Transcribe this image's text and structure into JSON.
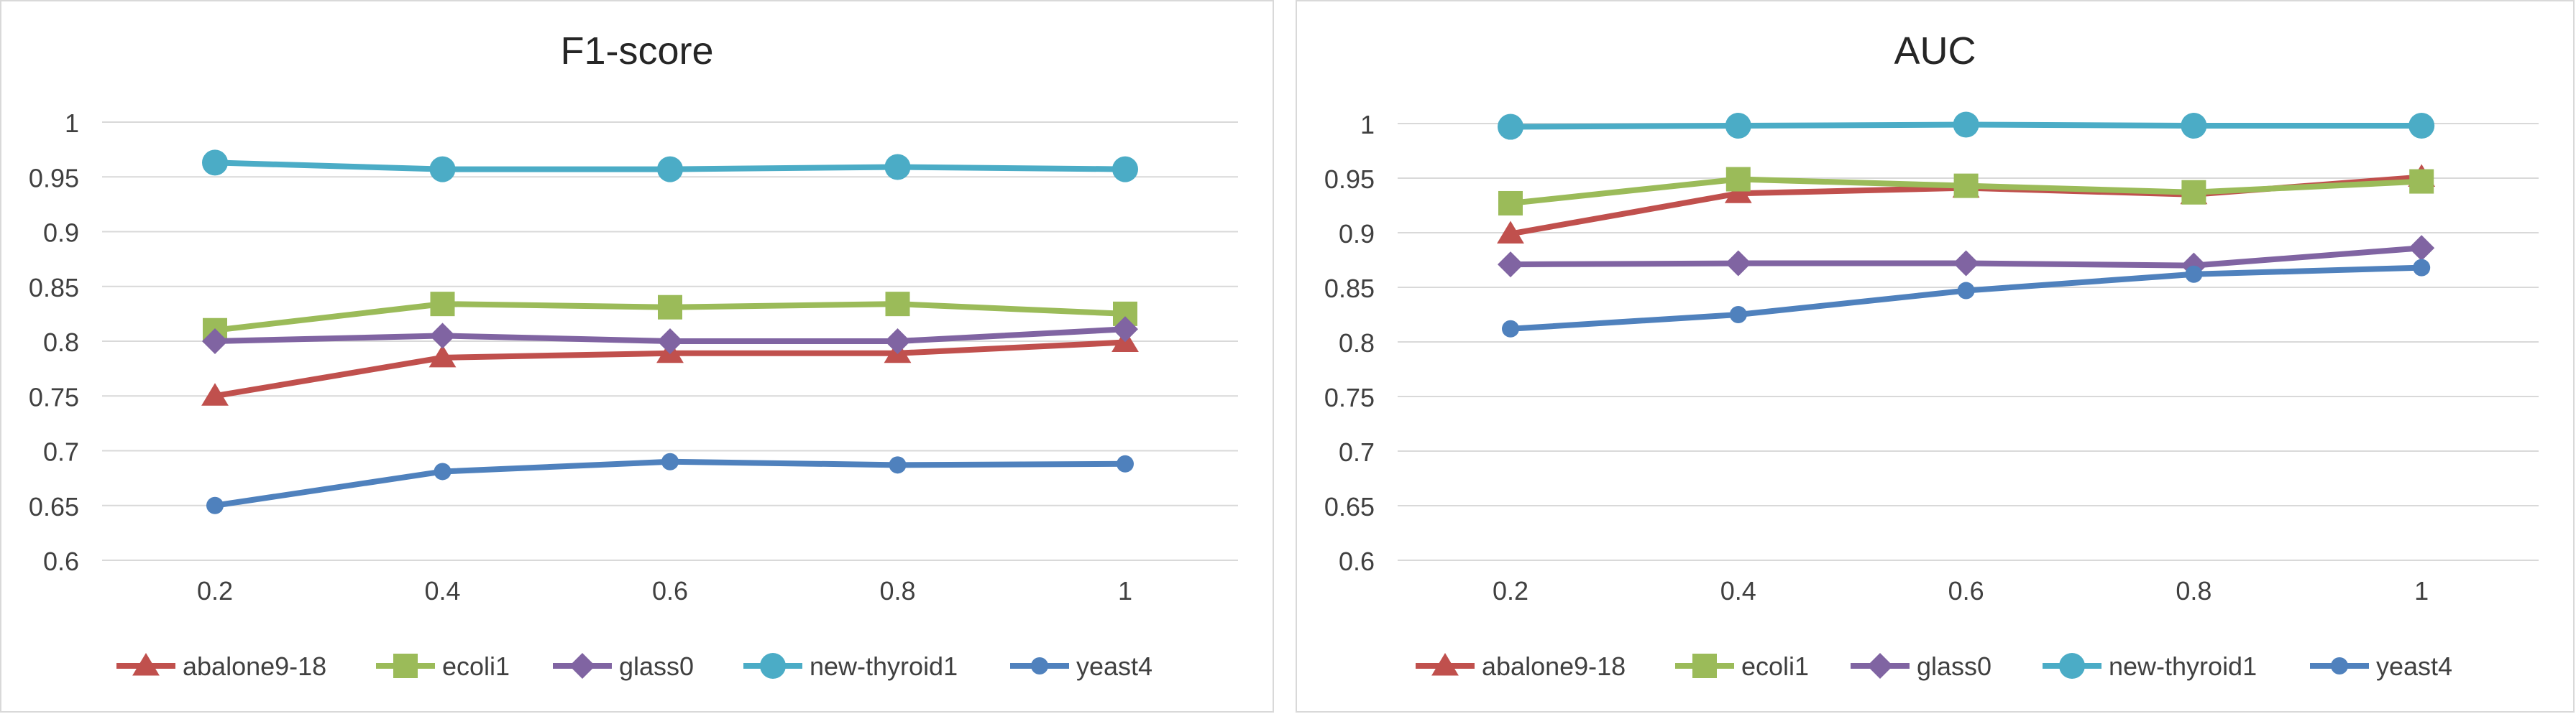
{
  "chart_data": [
    {
      "type": "line",
      "title": "F1-score",
      "xlabel": "",
      "ylabel": "",
      "categories": [
        "0.2",
        "0.4",
        "0.6",
        "0.8",
        "1"
      ],
      "yticks": [
        "0.6",
        "0.65",
        "0.7",
        "0.75",
        "0.8",
        "0.85",
        "0.9",
        "0.95",
        "1"
      ],
      "ylim": [
        0.6,
        1.0
      ],
      "grid": "horizontal",
      "legend_position": "bottom",
      "series": [
        {
          "name": "abalone9-18",
          "color": "#c0504d",
          "marker": "triangle",
          "values": [
            0.75,
            0.785,
            0.789,
            0.789,
            0.799
          ]
        },
        {
          "name": "ecoli1",
          "color": "#9bbb59",
          "marker": "square",
          "values": [
            0.81,
            0.834,
            0.831,
            0.834,
            0.825
          ]
        },
        {
          "name": "glass0",
          "color": "#8064a2",
          "marker": "diamond",
          "values": [
            0.8,
            0.805,
            0.8,
            0.8,
            0.811
          ]
        },
        {
          "name": "new-thyroid1",
          "color": "#4bacc6",
          "marker": "circle-large",
          "values": [
            0.963,
            0.957,
            0.957,
            0.959,
            0.957
          ]
        },
        {
          "name": "yeast4",
          "color": "#4f81bd",
          "marker": "circle",
          "values": [
            0.65,
            0.681,
            0.69,
            0.687,
            0.688
          ]
        }
      ]
    },
    {
      "type": "line",
      "title": "AUC",
      "xlabel": "",
      "ylabel": "",
      "categories": [
        "0.2",
        "0.4",
        "0.6",
        "0.8",
        "1"
      ],
      "yticks": [
        "0.6",
        "0.65",
        "0.7",
        "0.75",
        "0.8",
        "0.85",
        "0.9",
        "0.95",
        "1"
      ],
      "ylim": [
        0.6,
        1.0
      ],
      "grid": "horizontal",
      "legend_position": "bottom",
      "series": [
        {
          "name": "abalone9-18",
          "color": "#c0504d",
          "marker": "triangle",
          "values": [
            0.899,
            0.936,
            0.941,
            0.935,
            0.951
          ]
        },
        {
          "name": "ecoli1",
          "color": "#9bbb59",
          "marker": "square",
          "values": [
            0.927,
            0.949,
            0.943,
            0.937,
            0.947
          ]
        },
        {
          "name": "glass0",
          "color": "#8064a2",
          "marker": "diamond",
          "values": [
            0.871,
            0.872,
            0.872,
            0.87,
            0.886
          ]
        },
        {
          "name": "new-thyroid1",
          "color": "#4bacc6",
          "marker": "circle-large",
          "values": [
            0.997,
            0.998,
            0.999,
            0.998,
            0.998
          ]
        },
        {
          "name": "yeast4",
          "color": "#4f81bd",
          "marker": "circle",
          "values": [
            0.812,
            0.825,
            0.847,
            0.862,
            0.868
          ]
        }
      ]
    }
  ]
}
